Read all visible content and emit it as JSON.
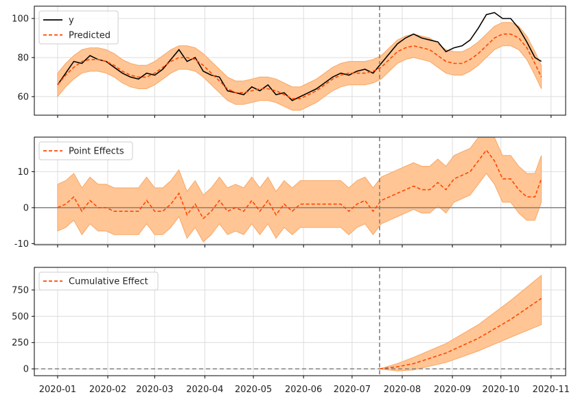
{
  "chart_data": [
    {
      "type": "line",
      "panel": "observed-vs-predicted",
      "legend": [
        "y",
        "Predicted"
      ],
      "legend_position": "top-left",
      "ylim": [
        50.5,
        106.3
      ],
      "yticks": [
        60,
        80,
        100
      ],
      "grid": true,
      "x_days_since_2020_01_01": [
        0,
        5,
        10,
        15,
        20,
        25,
        30,
        35,
        40,
        45,
        50,
        55,
        60,
        65,
        70,
        75,
        80,
        85,
        90,
        95,
        100,
        105,
        110,
        115,
        120,
        125,
        130,
        135,
        140,
        145,
        150,
        155,
        160,
        165,
        170,
        175,
        180,
        185,
        190,
        195,
        200,
        205,
        210,
        215,
        220,
        225,
        230,
        235,
        240,
        245,
        250,
        255,
        260,
        265,
        270,
        275,
        280,
        285,
        290,
        295,
        299
      ],
      "y": [
        66,
        72,
        78,
        77,
        81,
        79,
        78,
        75,
        72,
        70,
        69,
        72,
        71,
        74,
        79,
        84,
        78,
        80,
        73,
        71,
        70,
        63,
        62,
        61,
        65,
        63,
        66,
        61,
        62,
        58,
        60,
        62,
        64,
        67,
        70,
        72,
        71,
        73,
        74,
        72,
        77,
        82,
        87,
        90,
        92,
        90,
        89,
        88,
        83,
        85,
        86,
        89,
        95,
        102,
        103,
        100,
        100,
        95,
        88,
        80,
        78
      ],
      "predicted": [
        66,
        71,
        75,
        78,
        79,
        79,
        78,
        76,
        73,
        71,
        70,
        70,
        72,
        75,
        78,
        80,
        80,
        79,
        76,
        72,
        68,
        64,
        62,
        62,
        63,
        64,
        64,
        63,
        61,
        59,
        59,
        61,
        63,
        66,
        69,
        71,
        72,
        72,
        72,
        73,
        75,
        79,
        83,
        85,
        86,
        85,
        84,
        81,
        78,
        77,
        77,
        79,
        82,
        86,
        90,
        92,
        92,
        90,
        85,
        77,
        70
      ],
      "interval_halfwidth": 6
    },
    {
      "type": "line",
      "panel": "point-effects",
      "legend": [
        "Point Effects"
      ],
      "legend_position": "top-left",
      "ylim": [
        -10.3,
        19.6
      ],
      "yticks": [
        -10,
        0,
        10
      ],
      "grid": true,
      "derived_from": "y - predicted",
      "interval_halfwidth": 6.5
    },
    {
      "type": "line",
      "panel": "cumulative-effect",
      "legend": [
        "Cumulative Effect"
      ],
      "legend_position": "top-left",
      "ylim": [
        -65,
        965
      ],
      "yticks": [
        0,
        250,
        500,
        750
      ],
      "grid": true,
      "x_days_since_2020_01_01": [
        199,
        210,
        220,
        240,
        260,
        280,
        299
      ],
      "cumulative": [
        0,
        20,
        50,
        150,
        290,
        470,
        670
      ],
      "lower": [
        0,
        -20,
        -10,
        60,
        170,
        300,
        420
      ],
      "upper": [
        0,
        50,
        110,
        240,
        420,
        650,
        890
      ]
    }
  ],
  "intervention_day": 199,
  "xlim_days": [
    -14.4,
    314
  ],
  "x_ticks": [
    {
      "day": 0,
      "label": "2020-01"
    },
    {
      "day": 31,
      "label": "2020-02"
    },
    {
      "day": 60,
      "label": "2020-03"
    },
    {
      "day": 91,
      "label": "2020-04"
    },
    {
      "day": 121,
      "label": "2020-05"
    },
    {
      "day": 152,
      "label": "2020-06"
    },
    {
      "day": 182,
      "label": "2020-07"
    },
    {
      "day": 213,
      "label": "2020-08"
    },
    {
      "day": 244,
      "label": "2020-09"
    },
    {
      "day": 274,
      "label": "2020-10"
    },
    {
      "day": 305,
      "label": "2020-11"
    }
  ],
  "colors": {
    "observed": "#000000",
    "predicted": "#ff4500",
    "band": "#ffc594",
    "band_edge": "#f7a766",
    "reference": "#808080",
    "grid": "#dcdcdc"
  }
}
